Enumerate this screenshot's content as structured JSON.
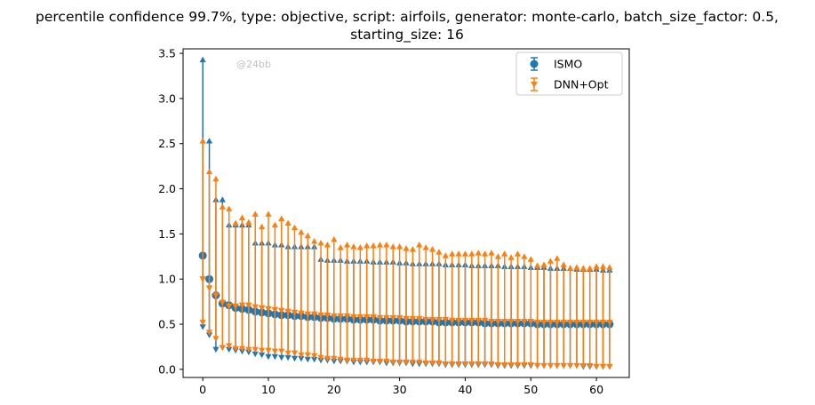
{
  "chart_data": {
    "type": "scatter",
    "title": "percentile confidence 99.7%, type: objective, script: airfoils, generator: monte-carlo, batch_size_factor: 0.5,",
    "subtitle": "starting_size: 16",
    "xlabel": "",
    "ylabel": "",
    "xlim": [
      -3,
      65
    ],
    "ylim": [
      -0.09,
      3.55
    ],
    "xticks": [
      0,
      10,
      20,
      30,
      40,
      50,
      60
    ],
    "yticks": [
      0.0,
      0.5,
      1.0,
      1.5,
      2.0,
      2.5,
      3.0,
      3.5
    ],
    "grid": false,
    "legend_position": "top-right",
    "watermark": "@24bb",
    "series": [
      {
        "name": "ISMO",
        "color": "#1f77b4",
        "marker": "circle",
        "x": [
          0,
          1,
          2,
          3,
          4,
          5,
          6,
          7,
          8,
          9,
          10,
          11,
          12,
          13,
          14,
          15,
          16,
          17,
          18,
          19,
          20,
          21,
          22,
          23,
          24,
          25,
          26,
          27,
          28,
          29,
          30,
          31,
          32,
          33,
          34,
          35,
          36,
          37,
          38,
          39,
          40,
          41,
          42,
          43,
          44,
          45,
          46,
          47,
          48,
          49,
          50,
          51,
          52,
          53,
          54,
          55,
          56,
          57,
          58,
          59,
          60,
          61,
          62
        ],
        "y": [
          1.26,
          1.0,
          0.82,
          0.73,
          0.71,
          0.68,
          0.67,
          0.66,
          0.64,
          0.63,
          0.62,
          0.61,
          0.6,
          0.6,
          0.59,
          0.59,
          0.58,
          0.58,
          0.57,
          0.57,
          0.56,
          0.56,
          0.56,
          0.55,
          0.55,
          0.55,
          0.55,
          0.54,
          0.54,
          0.54,
          0.54,
          0.53,
          0.53,
          0.53,
          0.53,
          0.53,
          0.52,
          0.52,
          0.52,
          0.52,
          0.52,
          0.52,
          0.52,
          0.51,
          0.51,
          0.51,
          0.51,
          0.51,
          0.51,
          0.51,
          0.51,
          0.5,
          0.5,
          0.5,
          0.5,
          0.5,
          0.5,
          0.5,
          0.5,
          0.5,
          0.5,
          0.5,
          0.5
        ],
        "upper": [
          3.43,
          2.53,
          1.88,
          1.88,
          1.6,
          1.6,
          1.6,
          1.6,
          1.4,
          1.4,
          1.4,
          1.38,
          1.38,
          1.36,
          1.36,
          1.36,
          1.36,
          1.36,
          1.22,
          1.21,
          1.21,
          1.21,
          1.2,
          1.2,
          1.2,
          1.2,
          1.19,
          1.19,
          1.19,
          1.19,
          1.18,
          1.18,
          1.17,
          1.17,
          1.17,
          1.17,
          1.17,
          1.16,
          1.16,
          1.16,
          1.16,
          1.15,
          1.15,
          1.15,
          1.15,
          1.15,
          1.14,
          1.14,
          1.14,
          1.14,
          1.13,
          1.13,
          1.13,
          1.12,
          1.12,
          1.12,
          1.12,
          1.11,
          1.11,
          1.11,
          1.11,
          1.1,
          1.1
        ],
        "lower": [
          0.47,
          0.38,
          0.22,
          0.24,
          0.22,
          0.21,
          0.2,
          0.19,
          0.17,
          0.16,
          0.14,
          0.14,
          0.13,
          0.13,
          0.12,
          0.12,
          0.11,
          0.11,
          0.1,
          0.1,
          0.09,
          0.09,
          0.09,
          0.08,
          0.08,
          0.08,
          0.08,
          0.08,
          0.07,
          0.07,
          0.07,
          0.07,
          0.06,
          0.06,
          0.06,
          0.06,
          0.06,
          0.05,
          0.05,
          0.05,
          0.05,
          0.05,
          0.05,
          0.05,
          0.05,
          0.04,
          0.04,
          0.04,
          0.04,
          0.04,
          0.04,
          0.04,
          0.04,
          0.04,
          0.04,
          0.04,
          0.04,
          0.04,
          0.03,
          0.03,
          0.03,
          0.03,
          0.03
        ]
      },
      {
        "name": "DNN+Opt",
        "color": "#ff7f0e",
        "marker": "triangle",
        "x": [
          0,
          1,
          2,
          3,
          4,
          5,
          6,
          7,
          8,
          9,
          10,
          11,
          12,
          13,
          14,
          15,
          16,
          17,
          18,
          19,
          20,
          21,
          22,
          23,
          24,
          25,
          26,
          27,
          28,
          29,
          30,
          31,
          32,
          33,
          34,
          35,
          36,
          37,
          38,
          39,
          40,
          41,
          42,
          43,
          44,
          45,
          46,
          47,
          48,
          49,
          50,
          51,
          52,
          53,
          54,
          55,
          56,
          57,
          58,
          59,
          60,
          61,
          62
        ],
        "y": [
          1.0,
          0.9,
          0.82,
          0.74,
          0.7,
          0.7,
          0.71,
          0.71,
          0.69,
          0.68,
          0.67,
          0.66,
          0.65,
          0.64,
          0.63,
          0.62,
          0.61,
          0.61,
          0.6,
          0.6,
          0.59,
          0.59,
          0.59,
          0.58,
          0.58,
          0.58,
          0.58,
          0.57,
          0.57,
          0.57,
          0.57,
          0.56,
          0.56,
          0.56,
          0.55,
          0.55,
          0.55,
          0.55,
          0.54,
          0.54,
          0.54,
          0.54,
          0.54,
          0.54,
          0.53,
          0.53,
          0.53,
          0.53,
          0.53,
          0.53,
          0.53,
          0.52,
          0.52,
          0.52,
          0.52,
          0.52,
          0.52,
          0.52,
          0.52,
          0.52,
          0.52,
          0.52,
          0.52
        ],
        "upper": [
          2.53,
          2.19,
          2.11,
          1.8,
          1.78,
          1.62,
          1.68,
          1.63,
          1.72,
          1.58,
          1.72,
          1.6,
          1.67,
          1.62,
          1.57,
          1.52,
          1.48,
          1.42,
          1.4,
          1.38,
          1.44,
          1.35,
          1.38,
          1.36,
          1.35,
          1.37,
          1.37,
          1.38,
          1.38,
          1.36,
          1.36,
          1.34,
          1.33,
          1.38,
          1.35,
          1.33,
          1.3,
          1.26,
          1.28,
          1.28,
          1.28,
          1.28,
          1.29,
          1.28,
          1.29,
          1.25,
          1.28,
          1.24,
          1.28,
          1.25,
          1.22,
          1.15,
          1.16,
          1.2,
          1.23,
          1.16,
          1.12,
          1.13,
          1.12,
          1.12,
          1.14,
          1.14,
          1.13
        ],
        "lower": [
          0.52,
          0.41,
          0.34,
          0.24,
          0.26,
          0.23,
          0.23,
          0.22,
          0.22,
          0.21,
          0.21,
          0.2,
          0.2,
          0.18,
          0.18,
          0.16,
          0.16,
          0.15,
          0.13,
          0.12,
          0.12,
          0.11,
          0.1,
          0.1,
          0.1,
          0.1,
          0.09,
          0.09,
          0.09,
          0.08,
          0.08,
          0.08,
          0.08,
          0.08,
          0.07,
          0.07,
          0.07,
          0.06,
          0.06,
          0.06,
          0.06,
          0.06,
          0.06,
          0.06,
          0.06,
          0.05,
          0.05,
          0.05,
          0.05,
          0.05,
          0.05,
          0.04,
          0.04,
          0.04,
          0.04,
          0.04,
          0.04,
          0.04,
          0.04,
          0.04,
          0.03,
          0.03,
          0.03
        ]
      }
    ]
  }
}
